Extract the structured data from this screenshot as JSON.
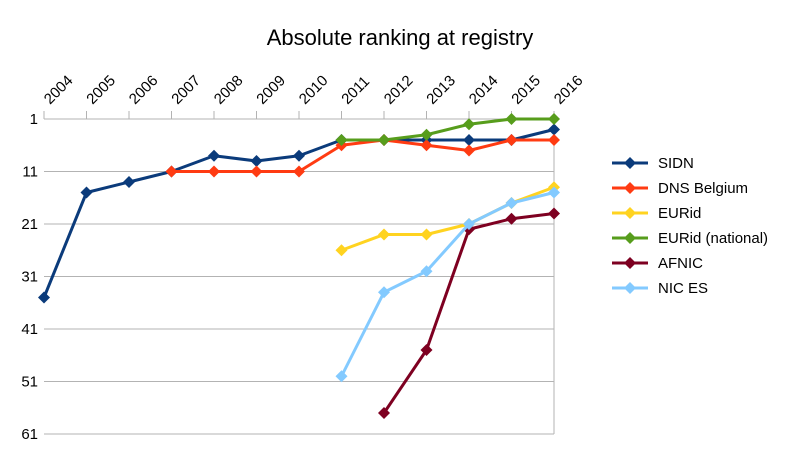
{
  "chart_data": {
    "type": "line",
    "title": "Absolute ranking at registry",
    "xlabel": "",
    "ylabel": "",
    "x": [
      "2004",
      "2005",
      "2006",
      "2007",
      "2008",
      "2009",
      "2010",
      "2011",
      "2012",
      "2013",
      "2014",
      "2015",
      "2016"
    ],
    "y_ticks": [
      "1",
      "11",
      "21",
      "31",
      "41",
      "51",
      "61"
    ],
    "ylim": [
      1,
      61
    ],
    "y_reversed": true,
    "x_axis_position": "top",
    "grid": "horizontal",
    "legend_position": "right",
    "series": [
      {
        "name": "SIDN",
        "color": "#0b3b7b",
        "values": [
          35,
          15,
          13,
          11,
          8,
          9,
          8,
          5,
          5,
          5,
          5,
          5,
          3
        ]
      },
      {
        "name": "DNS Belgium",
        "color": "#ff3b12",
        "values": [
          null,
          null,
          null,
          11,
          11,
          11,
          11,
          6,
          5,
          6,
          7,
          5,
          5
        ]
      },
      {
        "name": "EURid",
        "color": "#ffd320",
        "values": [
          null,
          null,
          null,
          null,
          null,
          null,
          null,
          26,
          23,
          23,
          21,
          17,
          14
        ]
      },
      {
        "name": "EURid (national)",
        "color": "#579d1c",
        "values": [
          null,
          null,
          null,
          null,
          null,
          null,
          null,
          5,
          5,
          4,
          2,
          1,
          1
        ]
      },
      {
        "name": "AFNIC",
        "color": "#7e0021",
        "values": [
          null,
          null,
          null,
          null,
          null,
          null,
          null,
          null,
          57,
          45,
          22,
          20,
          19
        ]
      },
      {
        "name": "NIC ES",
        "color": "#83caff",
        "values": [
          null,
          null,
          null,
          null,
          null,
          null,
          null,
          50,
          34,
          30,
          21,
          17,
          15
        ]
      }
    ]
  }
}
